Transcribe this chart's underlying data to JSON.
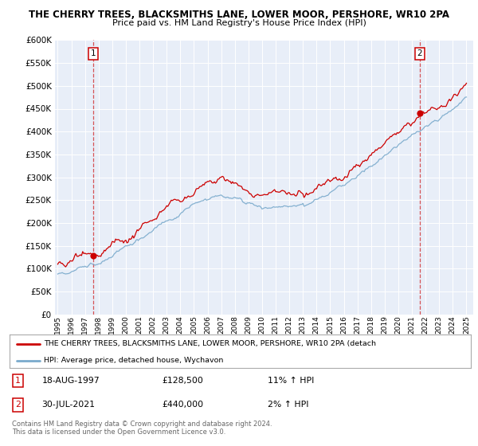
{
  "title1": "THE CHERRY TREES, BLACKSMITHS LANE, LOWER MOOR, PERSHORE, WR10 2PA",
  "title2": "Price paid vs. HM Land Registry's House Price Index (HPI)",
  "legend_line1": "THE CHERRY TREES, BLACKSMITHS LANE, LOWER MOOR, PERSHORE, WR10 2PA (detach",
  "legend_line2": "HPI: Average price, detached house, Wychavon",
  "annotation1_num": "1",
  "annotation1_date": "18-AUG-1997",
  "annotation1_price": "£128,500",
  "annotation1_hpi": "11% ↑ HPI",
  "annotation2_num": "2",
  "annotation2_date": "30-JUL-2021",
  "annotation2_price": "£440,000",
  "annotation2_hpi": "2% ↑ HPI",
  "footer": "Contains HM Land Registry data © Crown copyright and database right 2024.\nThis data is licensed under the Open Government Licence v3.0.",
  "point1_x": 1997.62,
  "point1_y": 128500,
  "point2_x": 2021.58,
  "point2_y": 440000,
  "ylim": [
    0,
    600000
  ],
  "xlim": [
    1994.8,
    2025.5
  ],
  "red_color": "#cc0000",
  "blue_color": "#7aaacc",
  "bg_color": "#ffffff",
  "plot_bg_color": "#e8eef8"
}
